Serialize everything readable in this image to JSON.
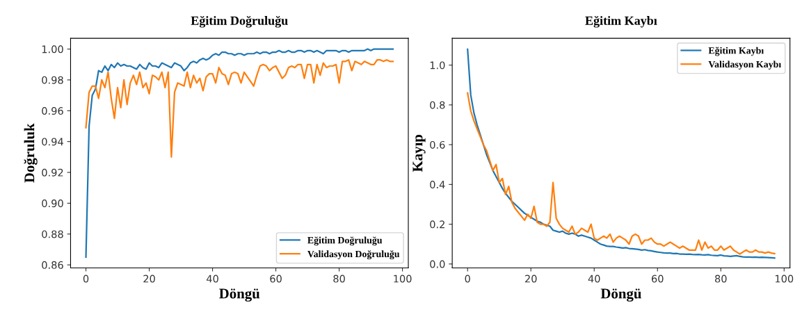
{
  "chart_data": [
    {
      "type": "line",
      "title": "Eğitim Doğruluğu",
      "xlabel": "Döngü",
      "ylabel": "Doğruluk",
      "x": [
        0,
        1,
        2,
        3,
        4,
        5,
        6,
        7,
        8,
        9,
        10,
        11,
        12,
        13,
        14,
        15,
        16,
        17,
        18,
        19,
        20,
        21,
        22,
        23,
        24,
        25,
        26,
        27,
        28,
        29,
        30,
        31,
        32,
        33,
        34,
        35,
        36,
        37,
        38,
        39,
        40,
        41,
        42,
        43,
        44,
        45,
        46,
        47,
        48,
        49,
        50,
        51,
        52,
        53,
        54,
        55,
        56,
        57,
        58,
        59,
        60,
        61,
        62,
        63,
        64,
        65,
        66,
        67,
        68,
        69,
        70,
        71,
        72,
        73,
        74,
        75,
        76,
        77,
        78,
        79,
        80,
        81,
        82,
        83,
        84,
        85,
        86,
        87,
        88,
        89,
        90,
        91,
        92,
        93,
        94,
        95,
        96,
        97
      ],
      "series": [
        {
          "name": "Eğitim Doğruluğu",
          "color": "#1f77b4",
          "values": [
            0.865,
            0.95,
            0.97,
            0.974,
            0.986,
            0.985,
            0.989,
            0.986,
            0.99,
            0.988,
            0.991,
            0.989,
            0.99,
            0.989,
            0.989,
            0.988,
            0.987,
            0.99,
            0.988,
            0.987,
            0.991,
            0.989,
            0.989,
            0.988,
            0.991,
            0.99,
            0.989,
            0.988,
            0.991,
            0.99,
            0.989,
            0.986,
            0.988,
            0.991,
            0.992,
            0.991,
            0.993,
            0.994,
            0.993,
            0.994,
            0.996,
            0.997,
            0.996,
            0.998,
            0.998,
            0.997,
            0.997,
            0.996,
            0.997,
            0.997,
            0.996,
            0.997,
            0.997,
            0.997,
            0.998,
            0.997,
            0.998,
            0.998,
            0.997,
            0.998,
            0.998,
            0.999,
            0.998,
            0.998,
            0.999,
            0.998,
            0.998,
            0.999,
            0.999,
            0.998,
            0.999,
            0.999,
            0.998,
            0.999,
            0.998,
            0.997,
            0.999,
            0.999,
            0.999,
            0.999,
            0.998,
            0.999,
            0.999,
            0.998,
            0.999,
            0.999,
            0.999,
            0.999,
            0.999,
            1.0,
            0.999,
            1.0,
            1.0,
            1.0,
            1.0,
            1.0,
            1.0,
            1.0
          ]
        },
        {
          "name": "Validasyon Doğruluğu",
          "color": "#ff7f0e",
          "values": [
            0.949,
            0.972,
            0.976,
            0.976,
            0.968,
            0.98,
            0.975,
            0.985,
            0.968,
            0.955,
            0.975,
            0.962,
            0.98,
            0.964,
            0.978,
            0.983,
            0.977,
            0.985,
            0.975,
            0.978,
            0.971,
            0.983,
            0.982,
            0.98,
            0.985,
            0.975,
            0.985,
            0.93,
            0.972,
            0.978,
            0.977,
            0.976,
            0.985,
            0.975,
            0.983,
            0.978,
            0.981,
            0.973,
            0.982,
            0.984,
            0.984,
            0.978,
            0.988,
            0.984,
            0.983,
            0.977,
            0.984,
            0.985,
            0.984,
            0.978,
            0.985,
            0.982,
            0.979,
            0.976,
            0.983,
            0.989,
            0.99,
            0.989,
            0.986,
            0.988,
            0.989,
            0.985,
            0.981,
            0.983,
            0.988,
            0.989,
            0.988,
            0.99,
            0.99,
            0.981,
            0.99,
            0.99,
            0.978,
            0.99,
            0.983,
            0.991,
            0.988,
            0.989,
            0.989,
            0.99,
            0.978,
            0.992,
            0.992,
            0.993,
            0.986,
            0.992,
            0.991,
            0.99,
            0.992,
            0.991,
            0.99,
            0.99,
            0.993,
            0.993,
            0.992,
            0.993,
            0.992,
            0.992
          ]
        }
      ],
      "xlim": [
        -4.85,
        101.85
      ],
      "ylim": [
        0.858,
        1.007
      ],
      "xticks": [
        0,
        20,
        40,
        60,
        80,
        100
      ],
      "yticks": [
        {
          "value": 0.86,
          "label": "0.86"
        },
        {
          "value": 0.88,
          "label": "0.88"
        },
        {
          "value": 0.9,
          "label": "0.90"
        },
        {
          "value": 0.92,
          "label": "0.92"
        },
        {
          "value": 0.94,
          "label": "0.94"
        },
        {
          "value": 0.96,
          "label": "0.96"
        },
        {
          "value": 0.98,
          "label": "0.98"
        },
        {
          "value": 1.0,
          "label": "1.00"
        }
      ],
      "grid": false,
      "legend": "lower right"
    },
    {
      "type": "line",
      "title": "Eğitim Kaybı",
      "xlabel": "Döngü",
      "ylabel": "Kayıp",
      "x": [
        0,
        1,
        2,
        3,
        4,
        5,
        6,
        7,
        8,
        9,
        10,
        11,
        12,
        13,
        14,
        15,
        16,
        17,
        18,
        19,
        20,
        21,
        22,
        23,
        24,
        25,
        26,
        27,
        28,
        29,
        30,
        31,
        32,
        33,
        34,
        35,
        36,
        37,
        38,
        39,
        40,
        41,
        42,
        43,
        44,
        45,
        46,
        47,
        48,
        49,
        50,
        51,
        52,
        53,
        54,
        55,
        56,
        57,
        58,
        59,
        60,
        61,
        62,
        63,
        64,
        65,
        66,
        67,
        68,
        69,
        70,
        71,
        72,
        73,
        74,
        75,
        76,
        77,
        78,
        79,
        80,
        81,
        82,
        83,
        84,
        85,
        86,
        87,
        88,
        89,
        90,
        91,
        92,
        93,
        94,
        95,
        96,
        97
      ],
      "series": [
        {
          "name": "Eğitim Kaybı",
          "color": "#1f77b4",
          "values": [
            1.08,
            0.85,
            0.76,
            0.7,
            0.65,
            0.6,
            0.55,
            0.51,
            0.47,
            0.44,
            0.41,
            0.38,
            0.355,
            0.335,
            0.315,
            0.3,
            0.285,
            0.27,
            0.255,
            0.245,
            0.235,
            0.225,
            0.215,
            0.21,
            0.2,
            0.195,
            0.19,
            0.17,
            0.165,
            0.16,
            0.165,
            0.155,
            0.15,
            0.155,
            0.15,
            0.14,
            0.145,
            0.14,
            0.135,
            0.13,
            0.12,
            0.11,
            0.1,
            0.095,
            0.09,
            0.088,
            0.088,
            0.085,
            0.083,
            0.08,
            0.082,
            0.078,
            0.077,
            0.075,
            0.073,
            0.07,
            0.072,
            0.068,
            0.066,
            0.063,
            0.06,
            0.058,
            0.056,
            0.055,
            0.055,
            0.052,
            0.053,
            0.05,
            0.05,
            0.049,
            0.05,
            0.048,
            0.047,
            0.048,
            0.046,
            0.045,
            0.047,
            0.044,
            0.043,
            0.042,
            0.045,
            0.041,
            0.04,
            0.038,
            0.04,
            0.042,
            0.038,
            0.036,
            0.035,
            0.035,
            0.034,
            0.035,
            0.033,
            0.034,
            0.033,
            0.032,
            0.031,
            0.03
          ]
        },
        {
          "name": "Validasyon Kaybı",
          "color": "#ff7f0e",
          "values": [
            0.86,
            0.77,
            0.72,
            0.68,
            0.64,
            0.6,
            0.57,
            0.52,
            0.47,
            0.5,
            0.41,
            0.43,
            0.35,
            0.39,
            0.31,
            0.28,
            0.26,
            0.24,
            0.22,
            0.25,
            0.23,
            0.29,
            0.21,
            0.2,
            0.2,
            0.19,
            0.21,
            0.41,
            0.23,
            0.2,
            0.18,
            0.17,
            0.16,
            0.19,
            0.15,
            0.16,
            0.18,
            0.17,
            0.16,
            0.2,
            0.13,
            0.12,
            0.13,
            0.14,
            0.13,
            0.15,
            0.11,
            0.13,
            0.14,
            0.13,
            0.12,
            0.1,
            0.14,
            0.15,
            0.14,
            0.1,
            0.12,
            0.12,
            0.13,
            0.11,
            0.1,
            0.1,
            0.09,
            0.1,
            0.11,
            0.1,
            0.09,
            0.08,
            0.09,
            0.08,
            0.07,
            0.07,
            0.07,
            0.12,
            0.07,
            0.11,
            0.08,
            0.09,
            0.07,
            0.07,
            0.09,
            0.07,
            0.08,
            0.09,
            0.07,
            0.06,
            0.05,
            0.06,
            0.07,
            0.06,
            0.06,
            0.07,
            0.06,
            0.06,
            0.055,
            0.06,
            0.055,
            0.052
          ]
        }
      ],
      "xlim": [
        -4.85,
        101.85
      ],
      "ylim": [
        -0.02,
        1.135
      ],
      "xticks": [
        0,
        20,
        40,
        60,
        80,
        100
      ],
      "yticks": [
        {
          "value": 0.0,
          "label": "0.0"
        },
        {
          "value": 0.2,
          "label": "0.2"
        },
        {
          "value": 0.4,
          "label": "0.4"
        },
        {
          "value": 0.6,
          "label": "0.6"
        },
        {
          "value": 0.8,
          "label": "0.8"
        },
        {
          "value": 1.0,
          "label": "1.0"
        }
      ],
      "grid": false,
      "legend": "upper right"
    }
  ]
}
